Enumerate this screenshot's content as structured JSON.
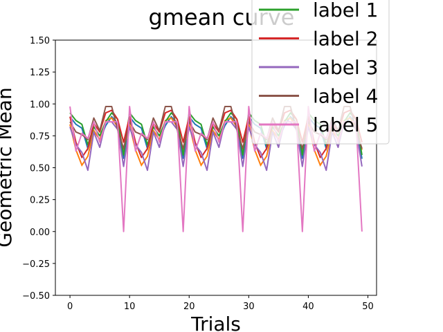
{
  "chart_data": {
    "type": "line",
    "title": "gmean curve",
    "xlabel": "Trials",
    "ylabel": "Geometric Mean",
    "xlim": [
      -2.45,
      51.45
    ],
    "ylim": [
      -0.5,
      1.5
    ],
    "xticks": [
      0,
      10,
      20,
      30,
      40,
      50
    ],
    "yticks": [
      -0.5,
      -0.25,
      0.0,
      0.25,
      0.5,
      0.75,
      1.0,
      1.25,
      1.5
    ],
    "xtick_labels": [
      "0",
      "10",
      "20",
      "30",
      "40",
      "50"
    ],
    "ytick_labels": [
      "−0.50",
      "−0.25",
      "0.00",
      "0.25",
      "0.50",
      "0.75",
      "1.00",
      "1.25",
      "1.50"
    ],
    "grid": false,
    "legend_position": "upper-right",
    "x": [
      0,
      1,
      2,
      3,
      4,
      5,
      6,
      7,
      8,
      9,
      10,
      11,
      12,
      13,
      14,
      15,
      16,
      17,
      18,
      19,
      20,
      21,
      22,
      23,
      24,
      25,
      26,
      27,
      28,
      29,
      30,
      31,
      32,
      33,
      34,
      35,
      36,
      37,
      38,
      39,
      40,
      41,
      42,
      43,
      44,
      45,
      46,
      47,
      48,
      49
    ],
    "series": [
      {
        "name": "label 1",
        "color": "#2ca02c",
        "values": [
          0.93,
          0.87,
          0.84,
          0.68,
          0.82,
          0.75,
          0.86,
          0.93,
          0.88,
          0.6,
          0.93,
          0.87,
          0.84,
          0.68,
          0.82,
          0.75,
          0.86,
          0.93,
          0.88,
          0.6,
          0.93,
          0.87,
          0.84,
          0.68,
          0.82,
          0.75,
          0.86,
          0.93,
          0.88,
          0.6,
          0.93,
          0.87,
          0.84,
          0.68,
          0.82,
          0.75,
          0.86,
          0.93,
          0.88,
          0.6,
          0.93,
          0.87,
          0.84,
          0.68,
          0.82,
          0.75,
          0.86,
          0.93,
          0.88,
          0.6
        ]
      },
      {
        "name": "label 2",
        "color": "#d62728",
        "values": [
          0.9,
          0.7,
          0.58,
          0.65,
          0.85,
          0.78,
          0.93,
          0.95,
          0.88,
          0.7,
          0.9,
          0.7,
          0.58,
          0.65,
          0.85,
          0.78,
          0.93,
          0.95,
          0.88,
          0.7,
          0.9,
          0.7,
          0.58,
          0.65,
          0.85,
          0.78,
          0.93,
          0.95,
          0.88,
          0.7,
          0.9,
          0.7,
          0.58,
          0.65,
          0.85,
          0.78,
          0.93,
          0.95,
          0.88,
          0.7,
          0.9,
          0.7,
          0.58,
          0.65,
          0.85,
          0.78,
          0.93,
          0.95,
          0.88,
          0.7
        ]
      },
      {
        "name": "label 3",
        "color": "#9467bd",
        "values": [
          0.82,
          0.68,
          0.62,
          0.48,
          0.78,
          0.66,
          0.86,
          0.86,
          0.8,
          0.51,
          0.82,
          0.68,
          0.62,
          0.48,
          0.78,
          0.66,
          0.86,
          0.86,
          0.8,
          0.51,
          0.82,
          0.68,
          0.62,
          0.48,
          0.78,
          0.66,
          0.86,
          0.86,
          0.8,
          0.51,
          0.82,
          0.68,
          0.62,
          0.48,
          0.78,
          0.66,
          0.86,
          0.86,
          0.8,
          0.51,
          0.82,
          0.68,
          0.62,
          0.48,
          0.78,
          0.66,
          0.86,
          0.86,
          0.8,
          0.51
        ]
      },
      {
        "name": "label 4",
        "color": "#8c564b",
        "values": [
          0.86,
          0.78,
          0.76,
          0.72,
          0.89,
          0.79,
          0.98,
          0.98,
          0.8,
          0.65,
          0.86,
          0.78,
          0.76,
          0.72,
          0.89,
          0.79,
          0.98,
          0.98,
          0.8,
          0.65,
          0.86,
          0.78,
          0.76,
          0.72,
          0.89,
          0.79,
          0.98,
          0.98,
          0.8,
          0.65,
          0.86,
          0.78,
          0.76,
          0.72,
          0.89,
          0.79,
          0.98,
          0.98,
          0.8,
          0.65,
          0.86,
          0.78,
          0.76,
          0.72,
          0.89,
          0.79,
          0.98,
          0.98,
          0.8,
          0.65
        ]
      },
      {
        "name": "label 5",
        "color": "#e377c2",
        "values": [
          0.98,
          0.63,
          0.77,
          0.73,
          0.86,
          0.7,
          0.86,
          0.86,
          0.86,
          0.0,
          0.98,
          0.63,
          0.77,
          0.73,
          0.86,
          0.7,
          0.86,
          0.86,
          0.86,
          0.0,
          0.98,
          0.63,
          0.77,
          0.73,
          0.86,
          0.7,
          0.86,
          0.86,
          0.86,
          0.0,
          0.98,
          0.63,
          0.77,
          0.73,
          0.86,
          0.7,
          0.86,
          0.86,
          0.86,
          0.0,
          0.98,
          0.63,
          0.77,
          0.73,
          0.86,
          0.7,
          0.86,
          0.86,
          0.86,
          0.0
        ]
      }
    ]
  },
  "hidden_series_colors": [
    "#1f77b4",
    "#ff7f0e"
  ]
}
